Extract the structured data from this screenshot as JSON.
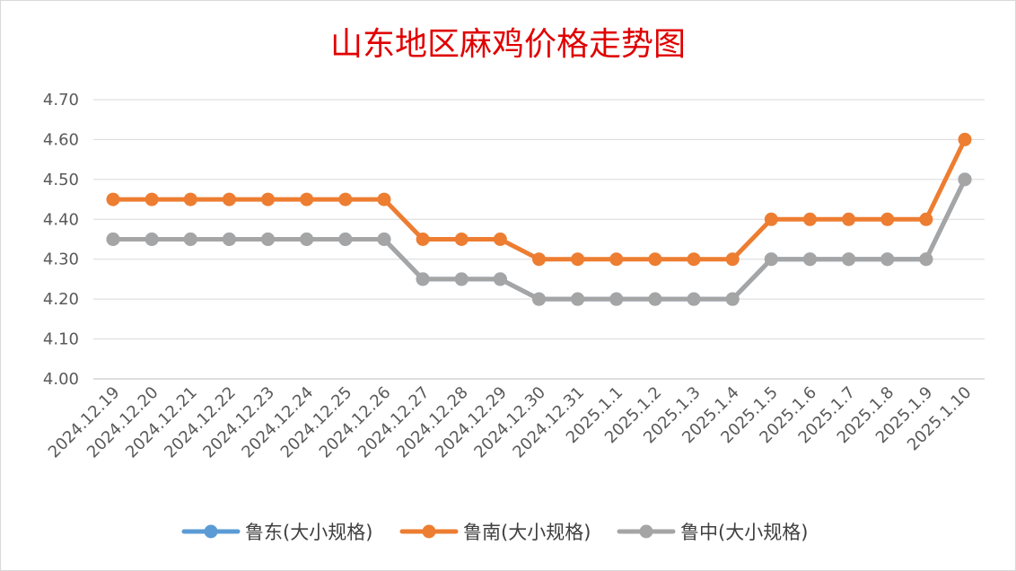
{
  "chart_data": {
    "type": "line",
    "title": "山东地区麻鸡价格走势图",
    "xlabel": "",
    "ylabel": "",
    "ylim": [
      4.0,
      4.7
    ],
    "yticks": [
      "4.00",
      "4.10",
      "4.20",
      "4.30",
      "4.40",
      "4.50",
      "4.60",
      "4.70"
    ],
    "grid": true,
    "legend_position": "bottom",
    "x": [
      "2024.12.19",
      "2024.12.20",
      "2024.12.21",
      "2024.12.22",
      "2024.12.23",
      "2024.12.24",
      "2024.12.25",
      "2024.12.26",
      "2024.12.27",
      "2024.12.28",
      "2024.12.29",
      "2024.12.30",
      "2024.12.31",
      "2025.1.1",
      "2025.1.2",
      "2025.1.3",
      "2025.1.4",
      "2025.1.5",
      "2025.1.6",
      "2025.1.7",
      "2025.1.8",
      "2025.1.9",
      "2025.1.10"
    ],
    "series": [
      {
        "name": "鲁东(大小规格)",
        "color": "#5b9bd5",
        "values": [
          4.35,
          4.35,
          4.35,
          4.35,
          4.35,
          4.35,
          4.35,
          4.35,
          4.25,
          4.25,
          4.25,
          4.2,
          4.2,
          4.2,
          4.2,
          4.2,
          4.2,
          4.3,
          4.3,
          4.3,
          4.3,
          4.3,
          4.5
        ]
      },
      {
        "name": "鲁南(大小规格)",
        "color": "#ed7d31",
        "values": [
          4.45,
          4.45,
          4.45,
          4.45,
          4.45,
          4.45,
          4.45,
          4.45,
          4.35,
          4.35,
          4.35,
          4.3,
          4.3,
          4.3,
          4.3,
          4.3,
          4.3,
          4.4,
          4.4,
          4.4,
          4.4,
          4.4,
          4.6
        ]
      },
      {
        "name": "鲁中(大小规格)",
        "color": "#a5a5a5",
        "values": [
          4.35,
          4.35,
          4.35,
          4.35,
          4.35,
          4.35,
          4.35,
          4.35,
          4.25,
          4.25,
          4.25,
          4.2,
          4.2,
          4.2,
          4.2,
          4.2,
          4.2,
          4.3,
          4.3,
          4.3,
          4.3,
          4.3,
          4.5
        ]
      }
    ]
  }
}
